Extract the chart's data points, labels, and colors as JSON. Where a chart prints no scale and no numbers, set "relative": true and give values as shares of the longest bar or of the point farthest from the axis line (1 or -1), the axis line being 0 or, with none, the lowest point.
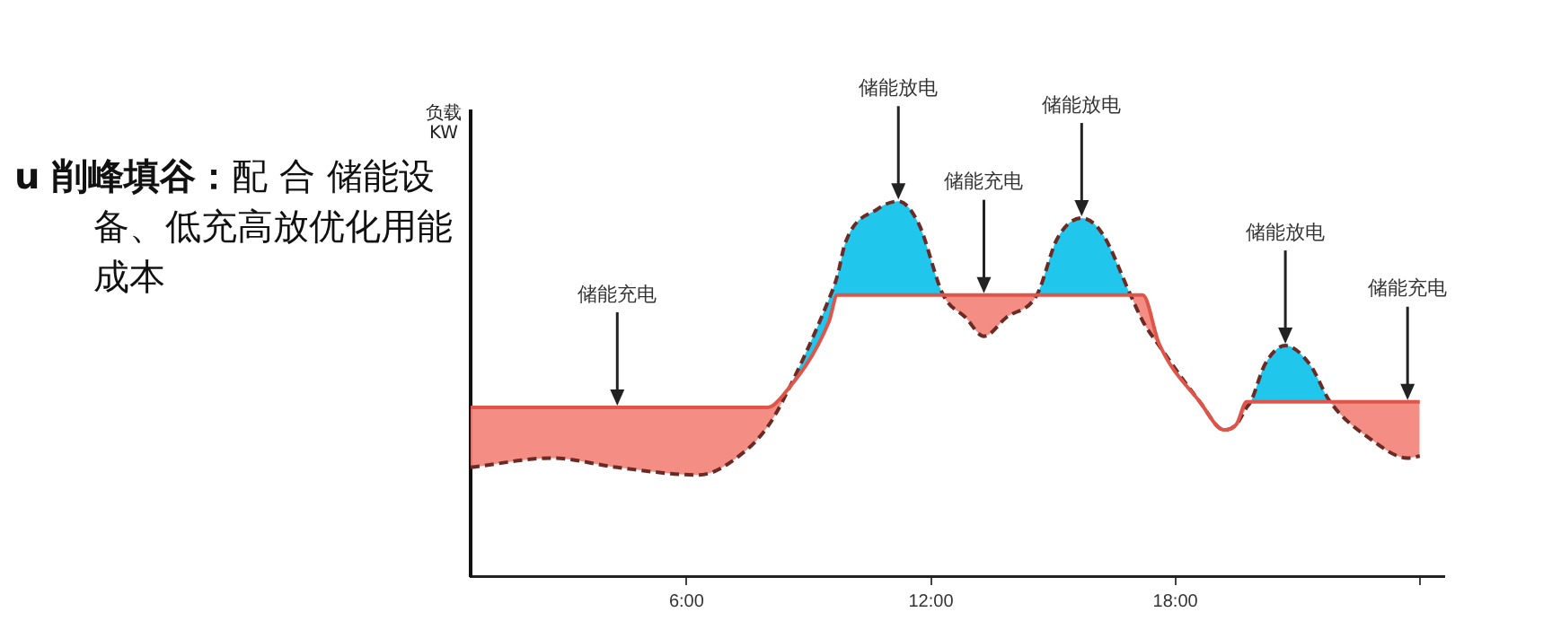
{
  "chart_data": {
    "type": "line",
    "title": "u 削峰填谷：",
    "subtitle": "配 合 储能设备、低充高放优化用能成本",
    "ylabel": "负载 KW",
    "relative": true,
    "x": [
      0.7,
      2.7,
      4.3,
      6.3,
      7.4,
      8.0,
      8.35,
      9.5,
      9.7,
      9.9,
      10.7,
      11.2,
      11.7,
      12.3,
      12.85,
      13.3,
      13.85,
      14.6,
      15.1,
      15.7,
      16.2,
      16.9,
      17.2,
      17.6,
      18.6,
      19.2,
      19.5,
      19.75,
      19.85,
      20.2,
      20.7,
      21.3,
      21.8,
      22.8,
      23.7,
      24.0
    ],
    "xlim": [
      0.7,
      24.6
    ],
    "xticks": [
      {
        "value": 6,
        "label": "6:00"
      },
      {
        "value": 12,
        "label": "12:00"
      },
      {
        "value": 18,
        "label": "18:00"
      },
      {
        "value": 24,
        "label": null
      }
    ],
    "series": [
      {
        "color": "#6b2a24",
        "line_style": "dashed",
        "values": [
          0.29,
          0.315,
          0.29,
          0.27,
          0.33,
          0.4,
          0.465,
          0.74,
          0.8,
          0.89,
          0.98,
          1.0,
          0.94,
          0.75,
          0.69,
          0.64,
          0.69,
          0.75,
          0.9,
          0.955,
          0.915,
          0.75,
          0.68,
          0.615,
          0.465,
          0.39,
          0.405,
          0.45,
          0.465,
          0.565,
          0.615,
          0.565,
          0.465,
          0.365,
          0.315,
          0.32
        ]
      },
      {
        "color": "#e0554a",
        "line_style": "solid",
        "values": [
          0.45,
          0.45,
          0.45,
          0.45,
          0.45,
          0.45,
          0.48,
          0.68,
          0.75,
          0.75,
          0.75,
          0.75,
          0.75,
          0.75,
          0.75,
          0.75,
          0.75,
          0.75,
          0.75,
          0.75,
          0.75,
          0.75,
          0.75,
          0.62,
          0.465,
          0.39,
          0.405,
          0.465,
          0.465,
          0.465,
          0.465,
          0.465,
          0.465,
          0.465,
          0.465,
          0.465
        ]
      }
    ],
    "annotations": [
      {
        "text": "储能充电",
        "x": 4.3,
        "y": 0.45
      },
      {
        "text": "储能放电",
        "x": 11.2,
        "y": 1.0
      },
      {
        "text": "储能充电",
        "x": 13.3,
        "y": 0.75
      },
      {
        "text": "储能放电",
        "x": 15.7,
        "y": 0.955
      },
      {
        "text": "储能放电",
        "x": 20.7,
        "y": 0.615
      },
      {
        "text": "储能充电",
        "x": 23.7,
        "y": 0.465
      }
    ],
    "grid": false,
    "legend": false,
    "marker": "none"
  }
}
